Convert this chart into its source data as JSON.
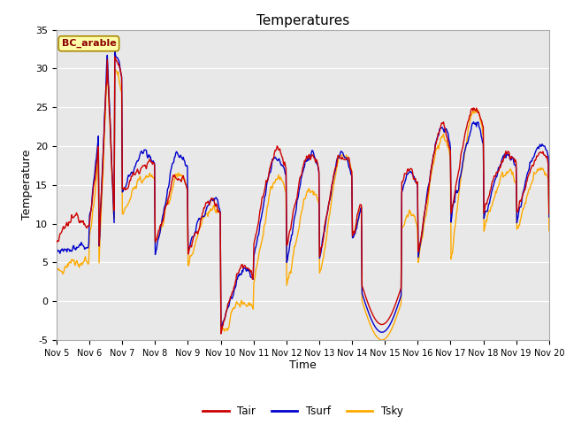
{
  "title": "Temperatures",
  "xlabel": "Time",
  "ylabel": "Temperature",
  "annotation": "BC_arable",
  "ylim": [
    -5,
    35
  ],
  "ytick_values": [
    -5,
    0,
    5,
    10,
    15,
    20,
    25,
    30,
    35
  ],
  "xtick_labels": [
    "Nov 5",
    "Nov 6",
    "Nov 7",
    "Nov 8",
    "Nov 9",
    "Nov 10",
    "Nov 11",
    "Nov 12",
    "Nov 13",
    "Nov 14",
    "Nov 15",
    "Nov 16",
    "Nov 17",
    "Nov 18",
    "Nov 19",
    "Nov 20"
  ],
  "legend_entries": [
    "Tair",
    "Tsurf",
    "Tsky"
  ],
  "line_colors": [
    "#cc0000",
    "#0000cc",
    "#ffaa00"
  ],
  "line_width": 1.0,
  "background_color": "#e8e8e8",
  "title_fontsize": 11,
  "axis_fontsize": 8,
  "annotation_color": "#8b0000",
  "annotation_bg": "#ffffaa",
  "annotation_edge": "#aa8800"
}
